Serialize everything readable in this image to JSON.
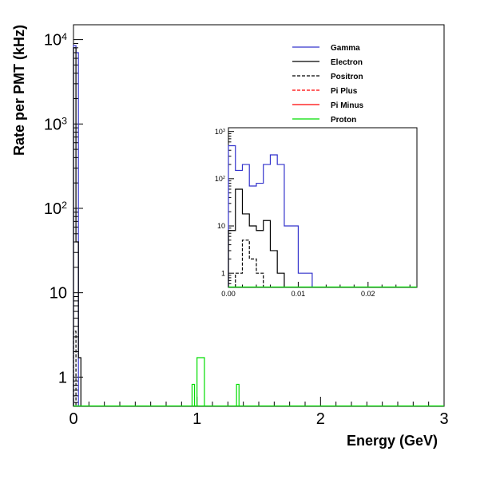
{
  "chart_data": [
    {
      "type": "histogram",
      "id": "main",
      "xlabel": "Energy (GeV)",
      "ylabel": "Rate per PMT (kHz)",
      "yscale": "log",
      "xlim": [
        0,
        3
      ],
      "ylim": [
        0.45,
        15000
      ],
      "x_ticks": [
        0,
        1,
        2,
        3
      ],
      "x_tick_labels": [
        "0",
        "1",
        "2",
        "3"
      ],
      "y_ticks": [
        1,
        10,
        100,
        1000,
        10000
      ],
      "y_tick_labels": [
        "1",
        "10",
        "10^2",
        "10^3",
        "10^4"
      ],
      "series": [
        {
          "name": "Gamma",
          "color": "#3333cc",
          "dash": "",
          "bins": [
            [
              0,
              0.02,
              8500
            ],
            [
              0.02,
              0.04,
              7000
            ]
          ]
        },
        {
          "name": "Electron",
          "color": "#000000",
          "dash": "",
          "bins": [
            [
              0,
              0.02,
              8000
            ],
            [
              0.02,
              0.04,
              40
            ],
            [
              0.04,
              0.06,
              1.7
            ]
          ]
        },
        {
          "name": "Positron",
          "color": "#000000",
          "dash": "4,2",
          "bins": [
            [
              0,
              0.02,
              3.5
            ]
          ]
        },
        {
          "name": "Pi Plus",
          "color": "#ff0000",
          "dash": "4,2",
          "bins": []
        },
        {
          "name": "Pi Minus",
          "color": "#ff0000",
          "dash": "",
          "bins": []
        },
        {
          "name": "Proton",
          "color": "#00dd00",
          "dash": "",
          "bins": [
            [
              0.96,
              0.98,
              0.82
            ],
            [
              1.0,
              1.06,
              1.7
            ],
            [
              1.32,
              1.34,
              0.82
            ]
          ]
        }
      ]
    },
    {
      "type": "histogram",
      "id": "inset",
      "yscale": "log",
      "xlim": [
        0,
        0.027
      ],
      "ylim": [
        0.5,
        1200
      ],
      "x_ticks": [
        0,
        0.01,
        0.02
      ],
      "x_tick_labels": [
        "0.00",
        "0.01",
        "0.02"
      ],
      "y_ticks": [
        1,
        10,
        100,
        1000
      ],
      "y_tick_labels": [
        "1",
        "10",
        "10^2",
        "10^3"
      ],
      "series": [
        {
          "name": "Gamma",
          "color": "#3333cc",
          "dash": "",
          "bins": [
            [
              0,
              0.001,
              500
            ],
            [
              0.001,
              0.002,
              150
            ],
            [
              0.002,
              0.003,
              200
            ],
            [
              0.003,
              0.004,
              70
            ],
            [
              0.004,
              0.005,
              80
            ],
            [
              0.005,
              0.006,
              200
            ],
            [
              0.006,
              0.007,
              320
            ],
            [
              0.007,
              0.008,
              200
            ],
            [
              0.008,
              0.009,
              10
            ],
            [
              0.009,
              0.01,
              10
            ],
            [
              0.01,
              0.011,
              1
            ],
            [
              0.011,
              0.012,
              1
            ]
          ]
        },
        {
          "name": "Electron",
          "color": "#000000",
          "dash": "",
          "bins": [
            [
              0,
              0.001,
              8
            ],
            [
              0.001,
              0.002,
              60
            ],
            [
              0.002,
              0.003,
              18
            ],
            [
              0.003,
              0.004,
              10
            ],
            [
              0.004,
              0.005,
              8
            ],
            [
              0.005,
              0.006,
              13
            ],
            [
              0.006,
              0.007,
              3
            ],
            [
              0.007,
              0.008,
              1
            ]
          ]
        },
        {
          "name": "Positron",
          "color": "#000000",
          "dash": "4,2",
          "bins": [
            [
              0.001,
              0.002,
              1
            ],
            [
              0.002,
              0.003,
              5
            ],
            [
              0.003,
              0.004,
              2
            ],
            [
              0.004,
              0.005,
              1
            ]
          ]
        },
        {
          "name": "Proton",
          "color": "#00dd00",
          "dash": "",
          "bins": []
        }
      ]
    }
  ]
}
